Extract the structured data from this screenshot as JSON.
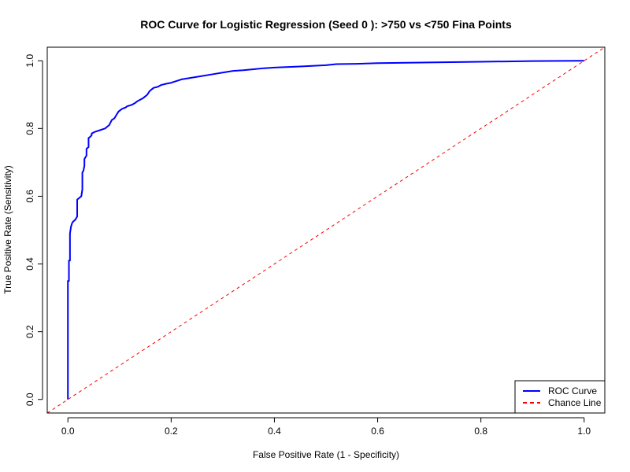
{
  "chart_data": {
    "type": "line",
    "title": "ROC Curve for Logistic Regression (Seed  0 ): >750 vs <750 Fina Points",
    "xlabel": "False Positive Rate (1 - Specificity)",
    "ylabel": "True Positive Rate (Sensitivity)",
    "xlim": [
      -0.04,
      1.04
    ],
    "ylim": [
      -0.04,
      1.04
    ],
    "x_ticks": [
      0.0,
      0.2,
      0.4,
      0.6,
      0.8,
      1.0
    ],
    "y_ticks": [
      0.0,
      0.2,
      0.4,
      0.6,
      0.8,
      1.0
    ],
    "x_tick_labels": [
      "0.0",
      "0.2",
      "0.4",
      "0.6",
      "0.8",
      "1.0"
    ],
    "y_tick_labels": [
      "0.0",
      "0.2",
      "0.4",
      "0.6",
      "0.8",
      "1.0"
    ],
    "grid": false,
    "legend_position": "bottom-right",
    "series": [
      {
        "name": "ROC Curve",
        "color": "#0000ff",
        "style": "solid",
        "x": [
          0.0,
          0.0,
          0.002,
          0.002,
          0.004,
          0.004,
          0.006,
          0.008,
          0.01,
          0.014,
          0.018,
          0.018,
          0.022,
          0.026,
          0.028,
          0.028,
          0.03,
          0.032,
          0.032,
          0.036,
          0.036,
          0.04,
          0.04,
          0.043,
          0.046,
          0.046,
          0.052,
          0.062,
          0.072,
          0.08,
          0.085,
          0.09,
          0.094,
          0.098,
          0.104,
          0.108,
          0.112,
          0.114,
          0.124,
          0.13,
          0.134,
          0.14,
          0.146,
          0.15,
          0.154,
          0.158,
          0.162,
          0.166,
          0.174,
          0.18,
          0.19,
          0.2,
          0.21,
          0.22,
          0.24,
          0.26,
          0.28,
          0.3,
          0.32,
          0.34,
          0.36,
          0.38,
          0.4,
          0.45,
          0.5,
          0.52,
          0.56,
          0.6,
          0.7,
          0.8,
          0.9,
          1.0
        ],
        "y": [
          0.0,
          0.35,
          0.35,
          0.41,
          0.41,
          0.49,
          0.51,
          0.52,
          0.525,
          0.53,
          0.54,
          0.59,
          0.595,
          0.6,
          0.62,
          0.67,
          0.675,
          0.69,
          0.71,
          0.72,
          0.74,
          0.745,
          0.772,
          0.775,
          0.78,
          0.785,
          0.79,
          0.795,
          0.8,
          0.81,
          0.825,
          0.83,
          0.84,
          0.85,
          0.857,
          0.86,
          0.862,
          0.865,
          0.87,
          0.875,
          0.88,
          0.885,
          0.89,
          0.895,
          0.9,
          0.91,
          0.915,
          0.92,
          0.923,
          0.928,
          0.932,
          0.935,
          0.94,
          0.945,
          0.95,
          0.955,
          0.96,
          0.965,
          0.97,
          0.972,
          0.975,
          0.978,
          0.98,
          0.983,
          0.987,
          0.99,
          0.991,
          0.993,
          0.995,
          0.997,
          0.999,
          1.0
        ]
      },
      {
        "name": "Chance Line",
        "color": "#ff0000",
        "style": "dashed",
        "x": [
          -0.04,
          1.04
        ],
        "y": [
          -0.04,
          1.04
        ]
      }
    ]
  }
}
